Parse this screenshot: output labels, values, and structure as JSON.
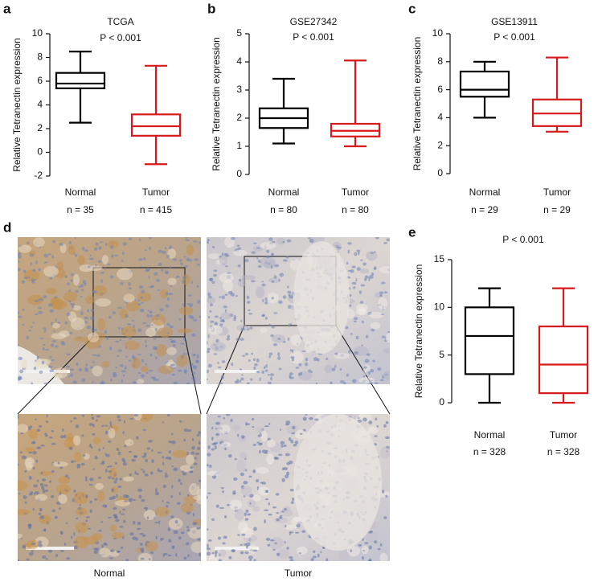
{
  "chart_data": [
    {
      "type": "box",
      "panel": "a",
      "title": "TCGA",
      "annotation": "P < 0.001",
      "ylabel": "Relative Tetranectin expression",
      "ylim": [
        -2,
        10
      ],
      "yticks": [
        -2,
        0,
        2,
        4,
        6,
        8,
        10
      ],
      "categories": [
        "Normal",
        "Tumor"
      ],
      "n_labels": [
        "n = 35",
        "n = 415"
      ],
      "boxes": [
        {
          "color": "#000000",
          "min": 2.5,
          "q1": 5.4,
          "median": 5.8,
          "q3": 6.7,
          "max": 8.5
        },
        {
          "color": "#d7191c",
          "min": -1,
          "q1": 1.4,
          "median": 2.2,
          "q3": 3.2,
          "max": 7.3
        }
      ]
    },
    {
      "type": "box",
      "panel": "b",
      "title": "GSE27342",
      "annotation": "P < 0.001",
      "ylabel": "Relative Tetranectin expression",
      "ylim": [
        0,
        5
      ],
      "yticks": [
        0,
        1,
        2,
        3,
        4,
        5
      ],
      "categories": [
        "Normal",
        "Tumor"
      ],
      "n_labels": [
        "n = 80",
        "n = 80"
      ],
      "boxes": [
        {
          "color": "#000000",
          "min": 1.1,
          "q1": 1.65,
          "median": 2.0,
          "q3": 2.35,
          "max": 3.4
        },
        {
          "color": "#d7191c",
          "min": 1.0,
          "q1": 1.35,
          "median": 1.55,
          "q3": 1.8,
          "max": 4.05
        }
      ]
    },
    {
      "type": "box",
      "panel": "c",
      "title": "GSE13911",
      "annotation": "P < 0.001",
      "ylabel": "Relative Tetranectin expression",
      "ylim": [
        0,
        10
      ],
      "yticks": [
        0,
        2,
        4,
        6,
        8,
        10
      ],
      "categories": [
        "Normal",
        "Tumor"
      ],
      "n_labels": [
        "n = 29",
        "n = 29"
      ],
      "boxes": [
        {
          "color": "#000000",
          "min": 4.0,
          "q1": 5.5,
          "median": 6.0,
          "q3": 7.3,
          "max": 8.0
        },
        {
          "color": "#d7191c",
          "min": 3.0,
          "q1": 3.4,
          "median": 4.3,
          "q3": 5.3,
          "max": 8.3
        }
      ]
    },
    {
      "type": "box",
      "panel": "e",
      "annotation": "P < 0.001",
      "ylabel": "Relative Tetranectin expression",
      "ylim": [
        0,
        15
      ],
      "yticks": [
        0,
        5,
        10,
        15
      ],
      "categories": [
        "Normal",
        "Tumor"
      ],
      "n_labels": [
        "n = 328",
        "n = 328"
      ],
      "boxes": [
        {
          "color": "#000000",
          "min": 0,
          "q1": 3,
          "median": 7,
          "q3": 10,
          "max": 12
        },
        {
          "color": "#d7191c",
          "min": 0,
          "q1": 1,
          "median": 4,
          "q3": 8,
          "max": 12
        }
      ]
    }
  ],
  "image_panel": {
    "panel": "d",
    "labels": [
      "Normal",
      "Tumor"
    ]
  }
}
